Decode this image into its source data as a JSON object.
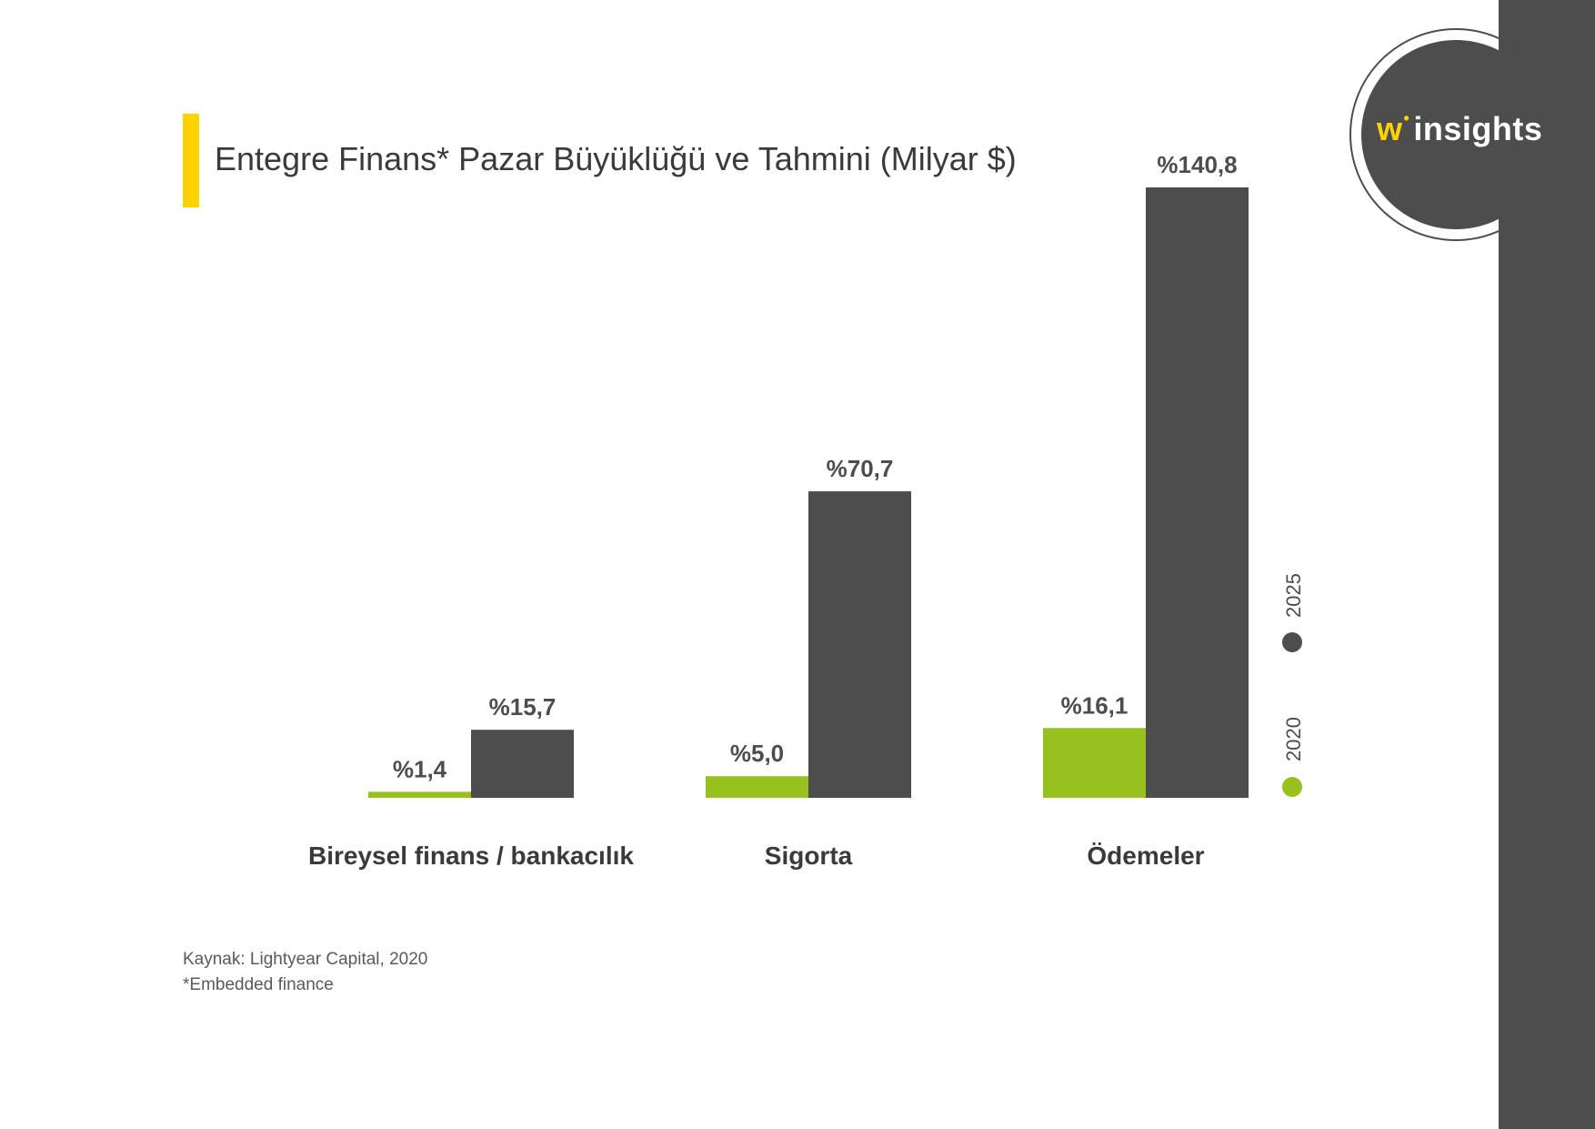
{
  "title": "Entegre Finans* Pazar Büyüklüğü ve Tahmini (Milyar $)",
  "source": "Kaynak: Lightyear Capital, 2020",
  "note": "*Embedded finance",
  "logo": {
    "prefix": "w",
    "dot": "•",
    "text": "insights"
  },
  "colors": {
    "accent": "#ffd200",
    "series_2020": "#96c11f",
    "series_2025": "#4d4d4d"
  },
  "chart_data": {
    "type": "bar",
    "title": "Entegre Finans* Pazar Büyüklüğü ve Tahmini (Milyar $)",
    "categories": [
      "Bireysel finans / bankacılık",
      "Sigorta",
      "Ödemeler"
    ],
    "series": [
      {
        "name": "2020",
        "values": [
          1.4,
          5.0,
          16.1
        ],
        "labels": [
          "%1,4",
          "%5,0",
          "%16,1"
        ],
        "color": "#96c11f"
      },
      {
        "name": "2025",
        "values": [
          15.7,
          70.7,
          140.8
        ],
        "labels": [
          "%15,7",
          "%70,7",
          "%140,8"
        ],
        "color": "#4d4d4d"
      }
    ],
    "ylim": [
      0,
      140.8
    ],
    "grid": false,
    "legend": "right-vertical"
  }
}
